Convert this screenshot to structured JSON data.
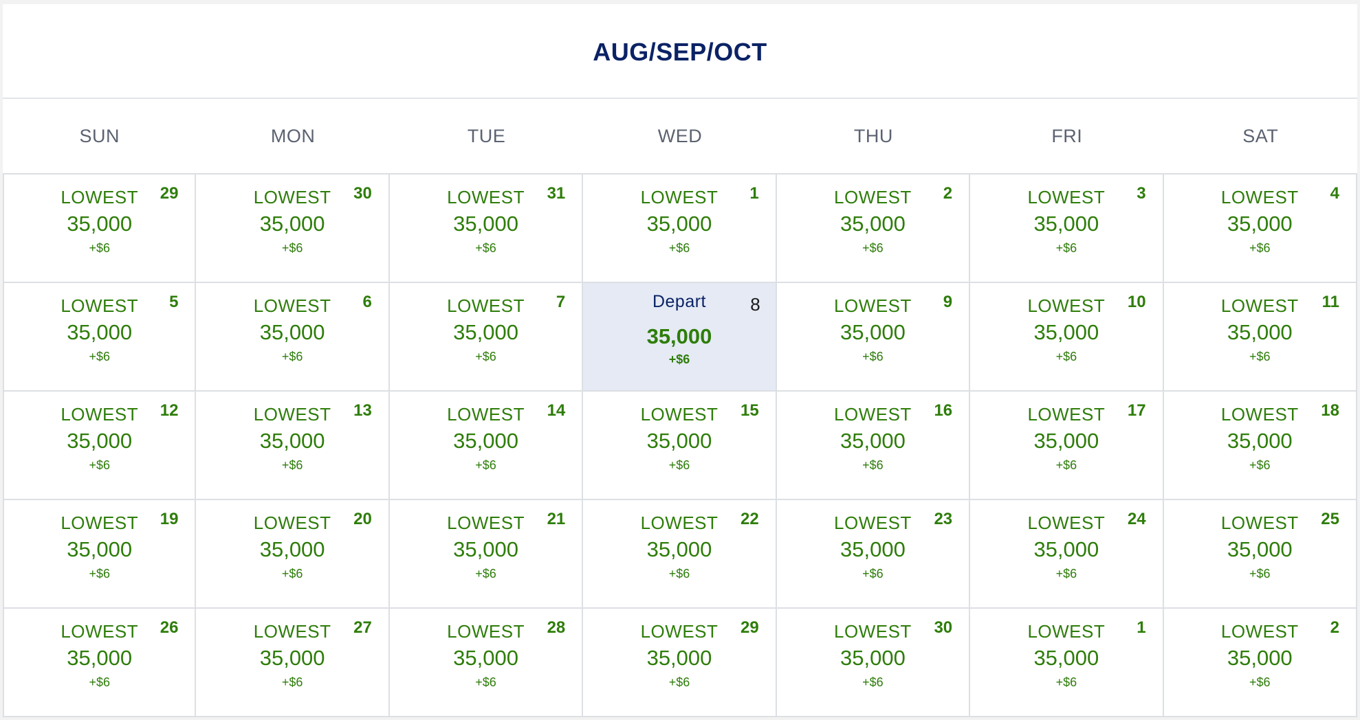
{
  "calendar": {
    "title": "AUG/SEP/OCT",
    "weekdays": [
      "SUN",
      "MON",
      "TUE",
      "WED",
      "THU",
      "FRI",
      "SAT"
    ],
    "colors": {
      "title": "#0b2265",
      "price": "#2e7d0a",
      "selected_bg": "#e5eaf4"
    },
    "cells": [
      {
        "day": "29",
        "tag": "LOWEST",
        "points": "35,000",
        "fee": "+$6",
        "selected": false
      },
      {
        "day": "30",
        "tag": "LOWEST",
        "points": "35,000",
        "fee": "+$6",
        "selected": false
      },
      {
        "day": "31",
        "tag": "LOWEST",
        "points": "35,000",
        "fee": "+$6",
        "selected": false
      },
      {
        "day": "1",
        "tag": "LOWEST",
        "points": "35,000",
        "fee": "+$6",
        "selected": false
      },
      {
        "day": "2",
        "tag": "LOWEST",
        "points": "35,000",
        "fee": "+$6",
        "selected": false
      },
      {
        "day": "3",
        "tag": "LOWEST",
        "points": "35,000",
        "fee": "+$6",
        "selected": false
      },
      {
        "day": "4",
        "tag": "LOWEST",
        "points": "35,000",
        "fee": "+$6",
        "selected": false
      },
      {
        "day": "5",
        "tag": "LOWEST",
        "points": "35,000",
        "fee": "+$6",
        "selected": false
      },
      {
        "day": "6",
        "tag": "LOWEST",
        "points": "35,000",
        "fee": "+$6",
        "selected": false
      },
      {
        "day": "7",
        "tag": "LOWEST",
        "points": "35,000",
        "fee": "+$6",
        "selected": false
      },
      {
        "day": "8",
        "tag": "Depart",
        "points": "35,000",
        "fee": "+$6",
        "selected": true
      },
      {
        "day": "9",
        "tag": "LOWEST",
        "points": "35,000",
        "fee": "+$6",
        "selected": false
      },
      {
        "day": "10",
        "tag": "LOWEST",
        "points": "35,000",
        "fee": "+$6",
        "selected": false
      },
      {
        "day": "11",
        "tag": "LOWEST",
        "points": "35,000",
        "fee": "+$6",
        "selected": false
      },
      {
        "day": "12",
        "tag": "LOWEST",
        "points": "35,000",
        "fee": "+$6",
        "selected": false
      },
      {
        "day": "13",
        "tag": "LOWEST",
        "points": "35,000",
        "fee": "+$6",
        "selected": false
      },
      {
        "day": "14",
        "tag": "LOWEST",
        "points": "35,000",
        "fee": "+$6",
        "selected": false
      },
      {
        "day": "15",
        "tag": "LOWEST",
        "points": "35,000",
        "fee": "+$6",
        "selected": false
      },
      {
        "day": "16",
        "tag": "LOWEST",
        "points": "35,000",
        "fee": "+$6",
        "selected": false
      },
      {
        "day": "17",
        "tag": "LOWEST",
        "points": "35,000",
        "fee": "+$6",
        "selected": false
      },
      {
        "day": "18",
        "tag": "LOWEST",
        "points": "35,000",
        "fee": "+$6",
        "selected": false
      },
      {
        "day": "19",
        "tag": "LOWEST",
        "points": "35,000",
        "fee": "+$6",
        "selected": false
      },
      {
        "day": "20",
        "tag": "LOWEST",
        "points": "35,000",
        "fee": "+$6",
        "selected": false
      },
      {
        "day": "21",
        "tag": "LOWEST",
        "points": "35,000",
        "fee": "+$6",
        "selected": false
      },
      {
        "day": "22",
        "tag": "LOWEST",
        "points": "35,000",
        "fee": "+$6",
        "selected": false
      },
      {
        "day": "23",
        "tag": "LOWEST",
        "points": "35,000",
        "fee": "+$6",
        "selected": false
      },
      {
        "day": "24",
        "tag": "LOWEST",
        "points": "35,000",
        "fee": "+$6",
        "selected": false
      },
      {
        "day": "25",
        "tag": "LOWEST",
        "points": "35,000",
        "fee": "+$6",
        "selected": false
      },
      {
        "day": "26",
        "tag": "LOWEST",
        "points": "35,000",
        "fee": "+$6",
        "selected": false
      },
      {
        "day": "27",
        "tag": "LOWEST",
        "points": "35,000",
        "fee": "+$6",
        "selected": false
      },
      {
        "day": "28",
        "tag": "LOWEST",
        "points": "35,000",
        "fee": "+$6",
        "selected": false
      },
      {
        "day": "29",
        "tag": "LOWEST",
        "points": "35,000",
        "fee": "+$6",
        "selected": false
      },
      {
        "day": "30",
        "tag": "LOWEST",
        "points": "35,000",
        "fee": "+$6",
        "selected": false
      },
      {
        "day": "1",
        "tag": "LOWEST",
        "points": "35,000",
        "fee": "+$6",
        "selected": false
      },
      {
        "day": "2",
        "tag": "LOWEST",
        "points": "35,000",
        "fee": "+$6",
        "selected": false
      }
    ]
  }
}
